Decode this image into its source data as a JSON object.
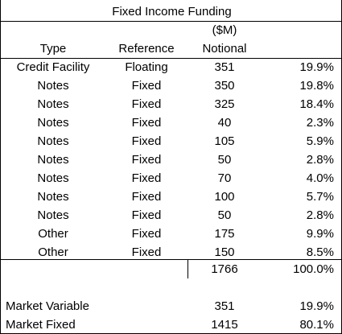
{
  "table": {
    "title": "Fixed Income Funding",
    "units": "($M)",
    "headers": {
      "type": "Type",
      "reference": "Reference",
      "notional": "Notional",
      "percent": ""
    },
    "rows": [
      {
        "type": "Credit Facility",
        "reference": "Floating",
        "notional": "351",
        "percent": "19.9%"
      },
      {
        "type": "Notes",
        "reference": "Fixed",
        "notional": "350",
        "percent": "19.8%"
      },
      {
        "type": "Notes",
        "reference": "Fixed",
        "notional": "325",
        "percent": "18.4%"
      },
      {
        "type": "Notes",
        "reference": "Fixed",
        "notional": "40",
        "percent": "2.3%"
      },
      {
        "type": "Notes",
        "reference": "Fixed",
        "notional": "105",
        "percent": "5.9%"
      },
      {
        "type": "Notes",
        "reference": "Fixed",
        "notional": "50",
        "percent": "2.8%"
      },
      {
        "type": "Notes",
        "reference": "Fixed",
        "notional": "70",
        "percent": "4.0%"
      },
      {
        "type": "Notes",
        "reference": "Fixed",
        "notional": "100",
        "percent": "5.7%"
      },
      {
        "type": "Notes",
        "reference": "Fixed",
        "notional": "50",
        "percent": "2.8%"
      },
      {
        "type": "Other",
        "reference": "Fixed",
        "notional": "175",
        "percent": "9.9%"
      },
      {
        "type": "Other",
        "reference": "Fixed",
        "notional": "150",
        "percent": "8.5%"
      }
    ],
    "total": {
      "notional": "1766",
      "percent": "100.0%"
    },
    "summary": [
      {
        "label": "Market Variable",
        "notional": "351",
        "percent": "19.9%"
      },
      {
        "label": "Market Fixed",
        "notional": "1415",
        "percent": "80.1%"
      }
    ]
  }
}
